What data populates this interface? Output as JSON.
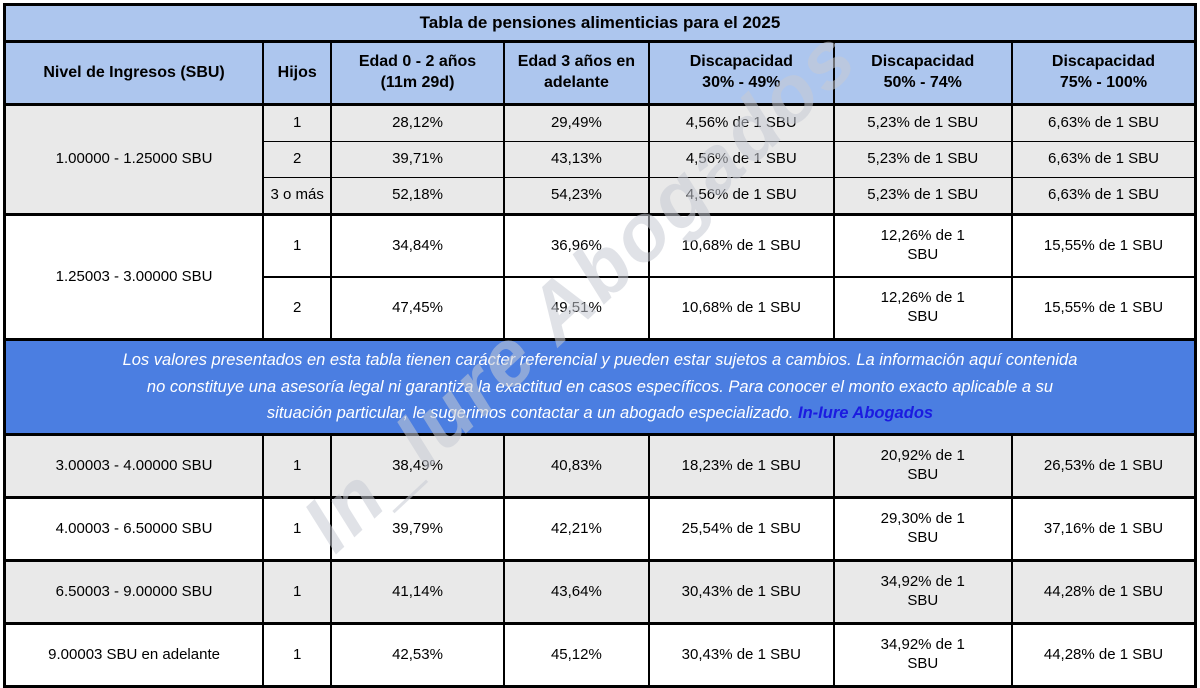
{
  "watermark": "In_Iure Abogados",
  "colors": {
    "header_bg": "#adc6ee",
    "band_bg": "#4b7ee1",
    "shade": "#e9e9e9",
    "link": "#1b1be0",
    "border": "#000000"
  },
  "table": {
    "title": "Tabla de pensiones alimenticias para el 2025",
    "columns": [
      {
        "id": "income",
        "lines": [
          "Nivel de Ingresos (SBU)"
        ]
      },
      {
        "id": "hijos",
        "lines": [
          "Hijos"
        ]
      },
      {
        "id": "edad_0_2",
        "lines": [
          "Edad 0 - 2 años",
          "(11m 29d)"
        ]
      },
      {
        "id": "edad_3",
        "lines": [
          "Edad 3 años en",
          "adelante"
        ]
      },
      {
        "id": "disc_30_49",
        "lines": [
          "Discapacidad",
          "30% - 49%"
        ]
      },
      {
        "id": "disc_50_74",
        "lines": [
          "Discapacidad",
          "50% - 74%"
        ]
      },
      {
        "id": "disc_75_100",
        "lines": [
          "Discapacidad",
          "75% - 100%"
        ]
      }
    ],
    "groups_top": [
      {
        "income": "1.00000 - 1.25000 SBU",
        "shaded": true,
        "tall": false,
        "rows": [
          {
            "hijos": "1",
            "edad_0_2": "28,12%",
            "edad_3": "29,49%",
            "disc_30_49": "4,56% de 1 SBU",
            "disc_50_74": "5,23% de 1 SBU",
            "disc_75_100": "6,63% de 1 SBU"
          },
          {
            "hijos": "2",
            "edad_0_2": "39,71%",
            "edad_3": "43,13%",
            "disc_30_49": "4,56% de 1 SBU",
            "disc_50_74": "5,23% de 1 SBU",
            "disc_75_100": "6,63% de 1 SBU"
          },
          {
            "hijos": "3 o más",
            "edad_0_2": "52,18%",
            "edad_3": "54,23%",
            "disc_30_49": "4,56% de 1 SBU",
            "disc_50_74": "5,23% de 1 SBU",
            "disc_75_100": "6,63% de 1 SBU"
          }
        ]
      },
      {
        "income": "1.25003 - 3.00000 SBU",
        "shaded": false,
        "tall": true,
        "rows": [
          {
            "hijos": "1",
            "edad_0_2": "34,84%",
            "edad_3": "36,96%",
            "disc_30_49": "10,68% de 1 SBU",
            "disc_50_74": "12,26% de 1 SBU",
            "disc_75_100": "15,55% de 1 SBU"
          },
          {
            "hijos": "2",
            "edad_0_2": "47,45%",
            "edad_3": "49,51%",
            "disc_30_49": "10,68% de 1 SBU",
            "disc_50_74": "12,26% de 1 SBU",
            "disc_75_100": "15,55% de 1 SBU"
          }
        ]
      }
    ],
    "disclaimer": {
      "lines": [
        "Los valores presentados en esta tabla tienen carácter referencial y pueden estar sujetos a cambios. La información aquí contenida",
        "no constituye una asesoría legal ni garantiza la exactitud en casos específicos. Para conocer el monto exacto aplicable a su",
        "situación particular, le sugerimos contactar a un abogado especializado."
      ],
      "link_label": "In-Iure Abogados"
    },
    "groups_bottom": [
      {
        "income": "3.00003 - 4.00000 SBU",
        "shaded": true,
        "tall": true,
        "rows": [
          {
            "hijos": "1",
            "edad_0_2": "38,49%",
            "edad_3": "40,83%",
            "disc_30_49": "18,23% de 1 SBU",
            "disc_50_74": "20,92% de 1 SBU",
            "disc_75_100": "26,53% de 1 SBU"
          }
        ]
      },
      {
        "income": "4.00003 - 6.50000 SBU",
        "shaded": false,
        "tall": true,
        "rows": [
          {
            "hijos": "1",
            "edad_0_2": "39,79%",
            "edad_3": "42,21%",
            "disc_30_49": "25,54% de 1 SBU",
            "disc_50_74": "29,30% de 1 SBU",
            "disc_75_100": "37,16% de 1 SBU"
          }
        ]
      },
      {
        "income": "6.50003 - 9.00000 SBU",
        "shaded": true,
        "tall": true,
        "rows": [
          {
            "hijos": "1",
            "edad_0_2": "41,14%",
            "edad_3": "43,64%",
            "disc_30_49": "30,43% de 1 SBU",
            "disc_50_74": "34,92% de 1 SBU",
            "disc_75_100": "44,28% de 1 SBU"
          }
        ]
      },
      {
        "income": "9.00003 SBU en adelante",
        "shaded": false,
        "tall": true,
        "rows": [
          {
            "hijos": "1",
            "edad_0_2": "42,53%",
            "edad_3": "45,12%",
            "disc_30_49": "30,43% de 1 SBU",
            "disc_50_74": "34,92% de 1 SBU",
            "disc_75_100": "44,28% de 1 SBU"
          }
        ]
      }
    ]
  }
}
